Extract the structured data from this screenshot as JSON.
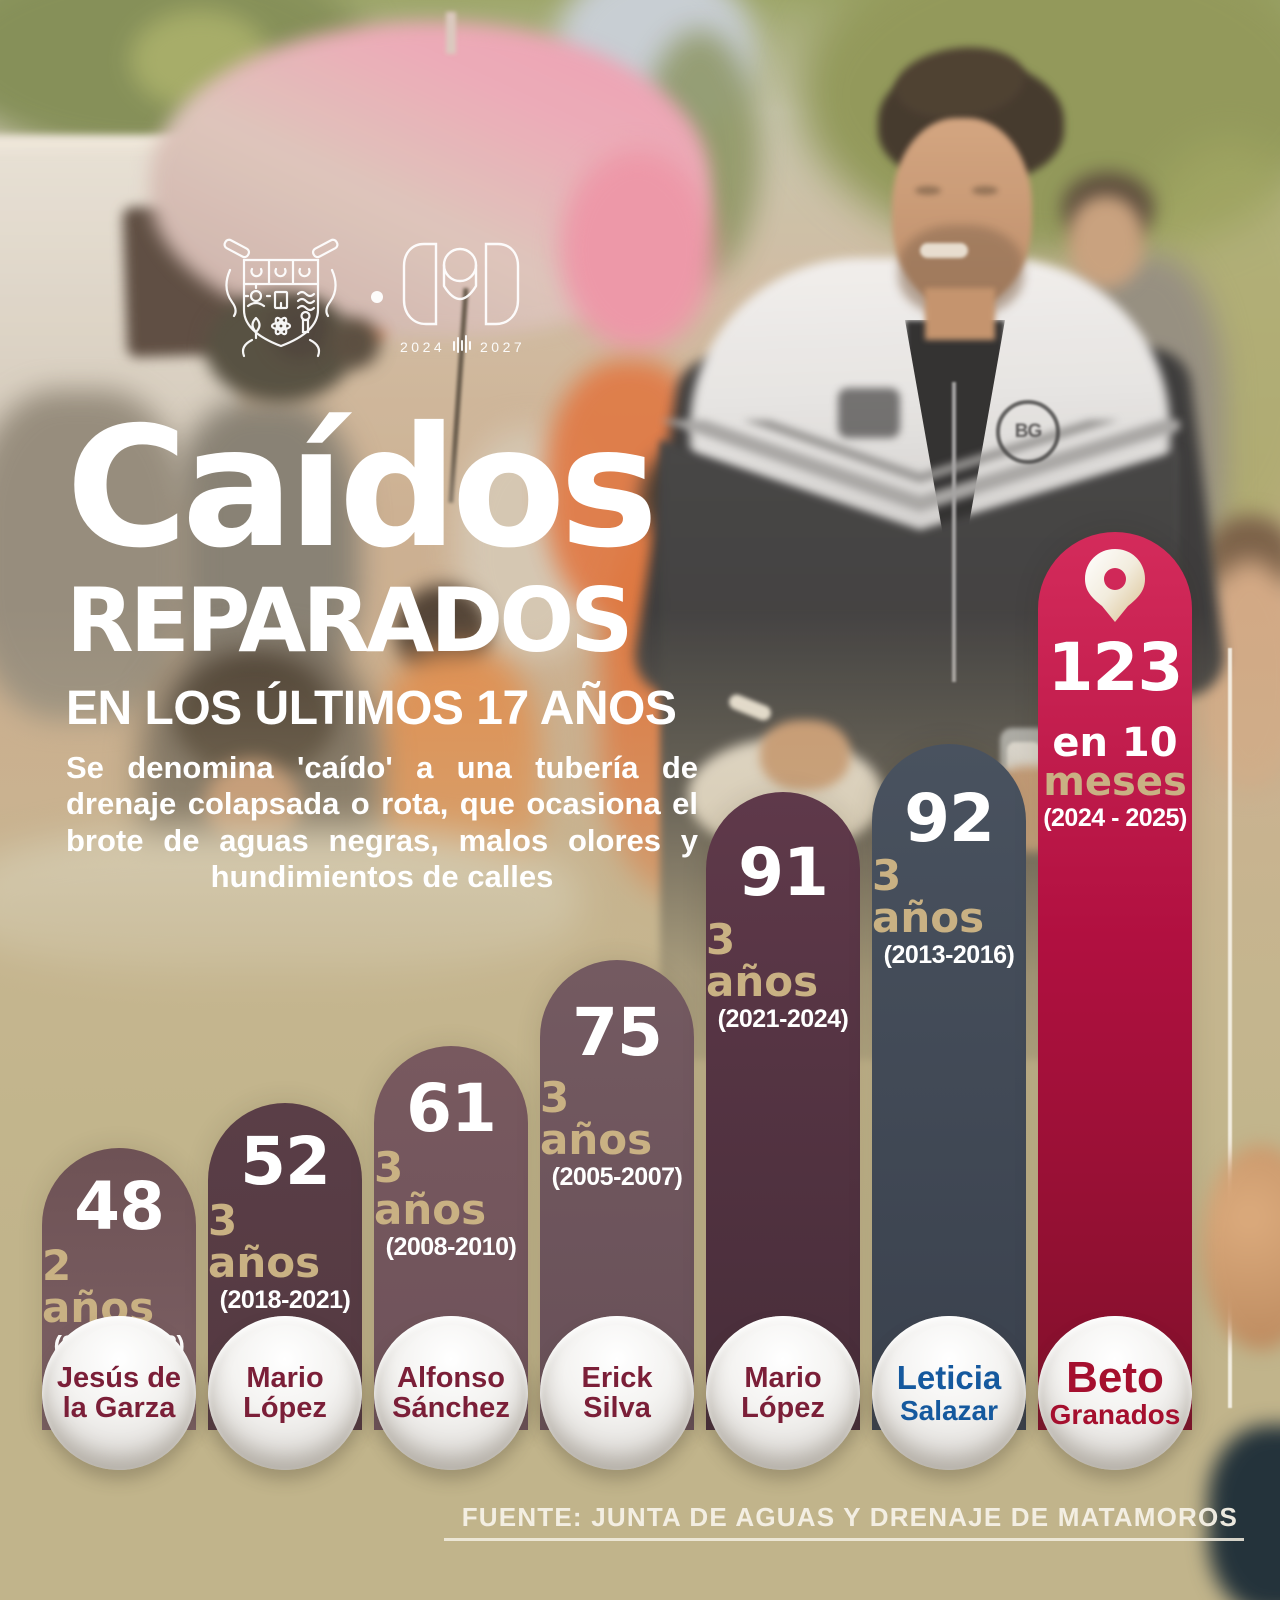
{
  "poster": {
    "title_script": "Caídos",
    "title_caps": "REPARADOS",
    "subtitle": "EN LOS ÚLTIMOS 17 AÑOS",
    "description": "Se denomina 'caído' a una tubería de drenaje colapsada o rota, que ocasiona el brote de aguas negras, malos olores y hundimientos de calles",
    "term_label_start": "2024",
    "term_label_end": "2027",
    "jacket_badge": "BG",
    "source": "FUENTE: JUNTA DE AGUAS Y DRENAJE DE MATAMOROS"
  },
  "colors": {
    "background_tan": "#c1b48b",
    "gold_text": "#c9b183",
    "white_text": "#ffffff",
    "name_maroon": "#7b1f38",
    "name_blue": "#15599e",
    "name_red": "#a50f2e",
    "highlight_pink": "#ce2256"
  },
  "chart_data": {
    "type": "bar",
    "title": "Caídos reparados en los últimos 17 años",
    "unit": "caídos (tuberías de drenaje colapsadas) reparados",
    "grid": false,
    "legend_position": "none",
    "ylim": [
      0,
      130
    ],
    "categories": [
      "Jesús de la Garza",
      "Mario López",
      "Alfonso Sánchez",
      "Erick Silva",
      "Mario López",
      "Leticia Salazar",
      "Beto Granados"
    ],
    "values": [
      48,
      52,
      61,
      75,
      91,
      92,
      123
    ],
    "bars": [
      {
        "value": "48",
        "period": "2 años",
        "range": "(2016-2018)",
        "official": "Jesús de la Garza",
        "name_line1": "Jesús de",
        "name_line2": "la Garza",
        "color_top": "#6e5255",
        "color_bottom": "#7d6165",
        "name_color": "#7b1f38",
        "emphasis": "none"
      },
      {
        "value": "52",
        "period": "3 años",
        "range": "(2018-2021)",
        "official": "Mario López",
        "name_line1": "Mario",
        "name_line2": "López",
        "color_top": "#5a3e47",
        "color_bottom": "#543941",
        "name_color": "#7b1f38",
        "emphasis": "none"
      },
      {
        "value": "61",
        "period": "3 años",
        "range": "(2008-2010)",
        "official": "Alfonso Sánchez",
        "name_line1": "Alfonso",
        "name_line2": "Sánchez",
        "color_top": "#78595f",
        "color_bottom": "#6e525a",
        "name_color": "#7b1f38",
        "emphasis": "none"
      },
      {
        "value": "75",
        "period": "3 años",
        "range": "(2005-2007)",
        "official": "Erick Silva",
        "name_line1": "Erick",
        "name_line2": "Silva",
        "color_top": "#745a61",
        "color_bottom": "#685058",
        "name_color": "#7b1f38",
        "emphasis": "none"
      },
      {
        "value": "91",
        "period": "3 años",
        "range": "(2021-2024)",
        "official": "Mario López",
        "name_line1": "Mario",
        "name_line2": "López",
        "color_top": "#5f394a",
        "color_bottom": "#472d39",
        "name_color": "#7b1f38",
        "emphasis": "none"
      },
      {
        "value": "92",
        "period": "3 años",
        "range": "(2013-2016)",
        "official": "Leticia Salazar",
        "name_line1": "Leticia",
        "name_line2": "Salazar",
        "color_top": "#49525f",
        "color_bottom": "#3a414d",
        "name_color": "#15599e",
        "emphasis": "mild"
      },
      {
        "value": "123",
        "period_line1": "en 10",
        "period_line2": "meses",
        "range": "(2024 - 2025)",
        "official": "Beto Granados",
        "name_line1": "Beto",
        "name_line2": "Granados",
        "color_top": "#d42b5b",
        "color_mid": "#b11040",
        "color_bottom": "#80102a",
        "name_color": "#a50f2e",
        "emphasis": "strong",
        "icon": "location-pin-icon"
      }
    ]
  }
}
